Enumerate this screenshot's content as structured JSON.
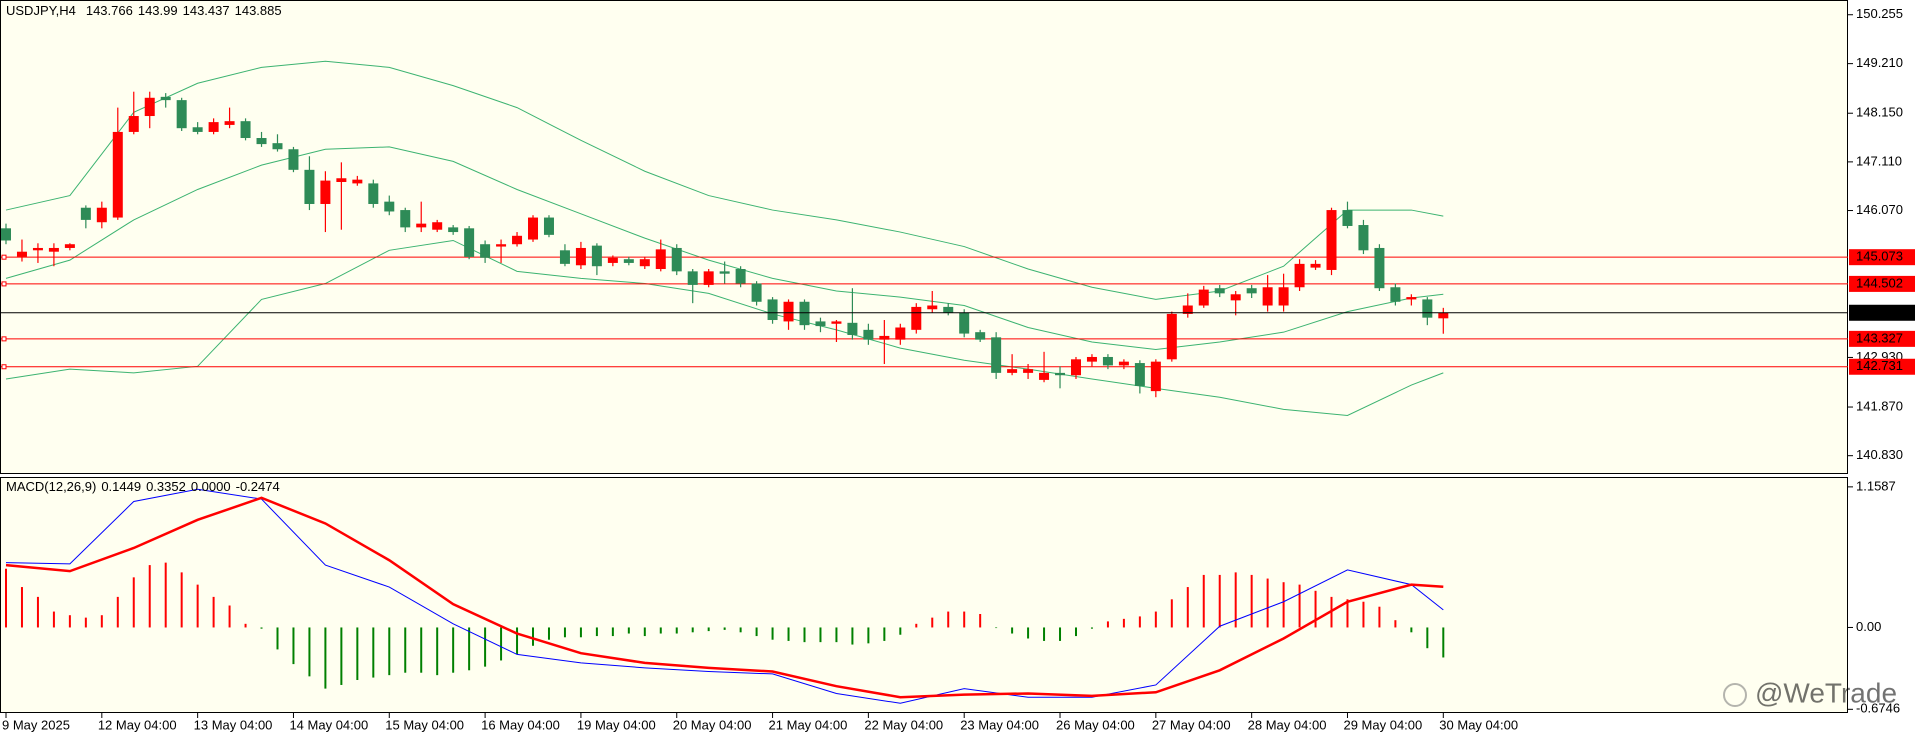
{
  "chart_data": {
    "type": "candlestick",
    "symbol": "USDJPY,H4",
    "categories": [
      "9 May 2025",
      null,
      null,
      null,
      null,
      null,
      "12 May 04:00",
      null,
      null,
      null,
      null,
      null,
      "13 May 04:00",
      null,
      null,
      null,
      null,
      null,
      "14 May 04:00",
      null,
      null,
      null,
      null,
      null,
      "15 May 04:00",
      null,
      null,
      null,
      null,
      null,
      "16 May 04:00",
      null,
      null,
      null,
      null,
      null,
      "19 May 04:00",
      null,
      null,
      null,
      null,
      null,
      "20 May 04:00",
      null,
      null,
      null,
      null,
      null,
      "21 May 04:00",
      null,
      null,
      null,
      null,
      null,
      "22 May 04:00",
      null,
      null,
      null,
      null,
      null,
      "23 May 04:00",
      null,
      null,
      null,
      null,
      null,
      "26 May 04:00",
      null,
      null,
      null,
      null,
      null,
      "27 May 04:00",
      null,
      null,
      null,
      null,
      null,
      "28 May 04:00",
      null,
      null,
      null,
      null,
      null,
      "29 May 04:00",
      null,
      null,
      null,
      null,
      null,
      "30 May 04:00"
    ],
    "candles": [
      {
        "o": 145.69,
        "h": 145.79,
        "l": 145.35,
        "c": 145.43
      },
      {
        "o": 145.08,
        "h": 145.45,
        "l": 144.98,
        "c": 145.19
      },
      {
        "o": 145.22,
        "h": 145.37,
        "l": 144.95,
        "c": 145.27
      },
      {
        "o": 145.19,
        "h": 145.37,
        "l": 144.88,
        "c": 145.27
      },
      {
        "o": 145.27,
        "h": 145.37,
        "l": 145.22,
        "c": 145.35
      },
      {
        "o": 146.13,
        "h": 146.18,
        "l": 145.69,
        "c": 145.87
      },
      {
        "o": 145.82,
        "h": 146.26,
        "l": 145.69,
        "c": 146.13
      },
      {
        "o": 145.92,
        "h": 148.27,
        "l": 145.87,
        "c": 147.75
      },
      {
        "o": 147.75,
        "h": 148.61,
        "l": 147.7,
        "c": 148.09
      },
      {
        "o": 148.09,
        "h": 148.61,
        "l": 147.83,
        "c": 148.48
      },
      {
        "o": 148.5,
        "h": 148.58,
        "l": 148.27,
        "c": 148.43
      },
      {
        "o": 148.43,
        "h": 148.48,
        "l": 147.77,
        "c": 147.83
      },
      {
        "o": 147.85,
        "h": 147.96,
        "l": 147.7,
        "c": 147.75
      },
      {
        "o": 147.75,
        "h": 148.04,
        "l": 147.7,
        "c": 147.96
      },
      {
        "o": 147.9,
        "h": 148.27,
        "l": 147.83,
        "c": 147.98
      },
      {
        "o": 147.98,
        "h": 148.04,
        "l": 147.57,
        "c": 147.62
      },
      {
        "o": 147.62,
        "h": 147.75,
        "l": 147.43,
        "c": 147.49
      },
      {
        "o": 147.51,
        "h": 147.7,
        "l": 147.33,
        "c": 147.38
      },
      {
        "o": 147.38,
        "h": 147.43,
        "l": 146.89,
        "c": 146.94
      },
      {
        "o": 146.94,
        "h": 147.23,
        "l": 146.08,
        "c": 146.21
      },
      {
        "o": 146.21,
        "h": 146.91,
        "l": 145.61,
        "c": 146.71
      },
      {
        "o": 146.68,
        "h": 147.1,
        "l": 145.66,
        "c": 146.76
      },
      {
        "o": 146.65,
        "h": 146.81,
        "l": 146.6,
        "c": 146.73
      },
      {
        "o": 146.65,
        "h": 146.73,
        "l": 146.13,
        "c": 146.21
      },
      {
        "o": 146.26,
        "h": 146.39,
        "l": 145.97,
        "c": 146.05
      },
      {
        "o": 146.08,
        "h": 146.13,
        "l": 145.61,
        "c": 145.71
      },
      {
        "o": 145.71,
        "h": 146.26,
        "l": 145.61,
        "c": 145.79
      },
      {
        "o": 145.66,
        "h": 145.87,
        "l": 145.61,
        "c": 145.82
      },
      {
        "o": 145.71,
        "h": 145.76,
        "l": 145.55,
        "c": 145.61
      },
      {
        "o": 145.69,
        "h": 145.74,
        "l": 145.03,
        "c": 145.08
      },
      {
        "o": 145.35,
        "h": 145.43,
        "l": 144.95,
        "c": 145.06
      },
      {
        "o": 145.3,
        "h": 145.45,
        "l": 144.95,
        "c": 145.35
      },
      {
        "o": 145.35,
        "h": 145.61,
        "l": 145.3,
        "c": 145.53
      },
      {
        "o": 145.45,
        "h": 145.97,
        "l": 145.4,
        "c": 145.92
      },
      {
        "o": 145.92,
        "h": 145.97,
        "l": 145.5,
        "c": 145.55
      },
      {
        "o": 145.22,
        "h": 145.35,
        "l": 144.88,
        "c": 144.93
      },
      {
        "o": 144.9,
        "h": 145.4,
        "l": 144.82,
        "c": 145.27
      },
      {
        "o": 145.32,
        "h": 145.37,
        "l": 144.69,
        "c": 144.88
      },
      {
        "o": 144.95,
        "h": 145.11,
        "l": 144.88,
        "c": 145.06
      },
      {
        "o": 145.03,
        "h": 145.08,
        "l": 144.9,
        "c": 144.95
      },
      {
        "o": 144.88,
        "h": 145.08,
        "l": 144.82,
        "c": 145.03
      },
      {
        "o": 144.82,
        "h": 145.45,
        "l": 144.77,
        "c": 145.24
      },
      {
        "o": 145.27,
        "h": 145.35,
        "l": 144.69,
        "c": 144.77
      },
      {
        "o": 144.77,
        "h": 144.82,
        "l": 144.09,
        "c": 144.48
      },
      {
        "o": 144.48,
        "h": 144.82,
        "l": 144.43,
        "c": 144.77
      },
      {
        "o": 144.77,
        "h": 144.98,
        "l": 144.51,
        "c": 144.72
      },
      {
        "o": 144.82,
        "h": 144.88,
        "l": 144.43,
        "c": 144.51
      },
      {
        "o": 144.51,
        "h": 144.56,
        "l": 144.04,
        "c": 144.12
      },
      {
        "o": 144.17,
        "h": 144.22,
        "l": 143.65,
        "c": 143.73
      },
      {
        "o": 143.7,
        "h": 144.17,
        "l": 143.52,
        "c": 144.12
      },
      {
        "o": 144.12,
        "h": 144.17,
        "l": 143.52,
        "c": 143.62
      },
      {
        "o": 143.7,
        "h": 143.78,
        "l": 143.47,
        "c": 143.6
      },
      {
        "o": 143.65,
        "h": 143.73,
        "l": 143.26,
        "c": 143.7
      },
      {
        "o": 143.67,
        "h": 144.41,
        "l": 143.31,
        "c": 143.41
      },
      {
        "o": 143.52,
        "h": 143.65,
        "l": 143.2,
        "c": 143.31
      },
      {
        "o": 143.31,
        "h": 143.73,
        "l": 142.79,
        "c": 143.39
      },
      {
        "o": 143.31,
        "h": 143.65,
        "l": 143.2,
        "c": 143.57
      },
      {
        "o": 143.52,
        "h": 144.09,
        "l": 143.44,
        "c": 144.01
      },
      {
        "o": 143.96,
        "h": 144.35,
        "l": 143.88,
        "c": 144.04
      },
      {
        "o": 144.01,
        "h": 144.09,
        "l": 143.83,
        "c": 143.88
      },
      {
        "o": 143.88,
        "h": 143.96,
        "l": 143.36,
        "c": 143.44
      },
      {
        "o": 143.47,
        "h": 143.52,
        "l": 143.26,
        "c": 143.31
      },
      {
        "o": 143.36,
        "h": 143.47,
        "l": 142.47,
        "c": 142.6
      },
      {
        "o": 142.6,
        "h": 143.0,
        "l": 142.55,
        "c": 142.68
      },
      {
        "o": 142.6,
        "h": 142.79,
        "l": 142.47,
        "c": 142.68
      },
      {
        "o": 142.45,
        "h": 143.05,
        "l": 142.4,
        "c": 142.6
      },
      {
        "o": 142.6,
        "h": 142.74,
        "l": 142.27,
        "c": 142.55
      },
      {
        "o": 142.55,
        "h": 142.94,
        "l": 142.47,
        "c": 142.89
      },
      {
        "o": 142.84,
        "h": 143.0,
        "l": 142.74,
        "c": 142.94
      },
      {
        "o": 142.94,
        "h": 143.0,
        "l": 142.68,
        "c": 142.76
      },
      {
        "o": 142.76,
        "h": 142.89,
        "l": 142.68,
        "c": 142.84
      },
      {
        "o": 142.81,
        "h": 142.87,
        "l": 142.16,
        "c": 142.32
      },
      {
        "o": 142.21,
        "h": 142.89,
        "l": 142.08,
        "c": 142.84
      },
      {
        "o": 142.89,
        "h": 143.91,
        "l": 142.84,
        "c": 143.86
      },
      {
        "o": 143.86,
        "h": 144.3,
        "l": 143.78,
        "c": 144.04
      },
      {
        "o": 144.04,
        "h": 144.46,
        "l": 143.99,
        "c": 144.38
      },
      {
        "o": 144.41,
        "h": 144.48,
        "l": 144.22,
        "c": 144.3
      },
      {
        "o": 144.15,
        "h": 144.35,
        "l": 143.83,
        "c": 144.28
      },
      {
        "o": 144.41,
        "h": 144.48,
        "l": 144.2,
        "c": 144.3
      },
      {
        "o": 144.04,
        "h": 144.69,
        "l": 143.91,
        "c": 144.43
      },
      {
        "o": 144.04,
        "h": 144.72,
        "l": 143.91,
        "c": 144.43
      },
      {
        "o": 144.43,
        "h": 145.03,
        "l": 144.35,
        "c": 144.93
      },
      {
        "o": 144.85,
        "h": 145.01,
        "l": 144.8,
        "c": 144.93
      },
      {
        "o": 144.8,
        "h": 146.13,
        "l": 144.69,
        "c": 146.08
      },
      {
        "o": 146.08,
        "h": 146.26,
        "l": 145.69,
        "c": 145.74
      },
      {
        "o": 145.76,
        "h": 145.87,
        "l": 145.14,
        "c": 145.22
      },
      {
        "o": 145.27,
        "h": 145.35,
        "l": 144.35,
        "c": 144.41
      },
      {
        "o": 144.43,
        "h": 144.51,
        "l": 144.04,
        "c": 144.12
      },
      {
        "o": 144.17,
        "h": 144.28,
        "l": 144.04,
        "c": 144.22
      },
      {
        "o": 144.17,
        "h": 144.22,
        "l": 143.62,
        "c": 143.78
      },
      {
        "o": 143.766,
        "h": 143.99,
        "l": 143.437,
        "c": 143.885
      }
    ],
    "up_color": "#ff0000",
    "down_color": "#2e8b57",
    "ylim": [
      140.46,
      150.57
    ],
    "yticks": [
      150.255,
      {
        "value": 149.21,
        "label": "149.210"
      },
      {
        "value": 148.15,
        "label": "148.150"
      },
      {
        "value": 147.11,
        "label": "147.110"
      },
      {
        "value": 146.07,
        "label": "146.070"
      },
      {
        "value": 142.93,
        "label": "142.930"
      },
      {
        "value": 141.87,
        "label": "141.870"
      },
      {
        "value": 140.83,
        "label": "140.830"
      }
    ],
    "levels": {
      "color": "#ff0000",
      "values": [
        145.073,
        144.502,
        143.327,
        142.731
      ]
    },
    "bands": {
      "color": "#3cb371",
      "x": [
        0,
        4,
        8,
        12,
        16,
        20,
        24,
        28,
        32,
        36,
        40,
        44,
        48,
        52,
        56,
        60,
        64,
        68,
        72,
        76,
        80,
        84,
        88,
        90
      ],
      "upper": [
        146.08,
        146.39,
        148.17,
        148.79,
        149.13,
        149.26,
        149.13,
        148.74,
        148.27,
        147.57,
        146.91,
        146.39,
        146.08,
        145.87,
        145.61,
        145.3,
        144.82,
        144.43,
        144.17,
        144.35,
        144.88,
        146.08,
        146.08,
        145.95
      ],
      "middle": [
        144.62,
        145.01,
        145.87,
        146.52,
        147.04,
        147.38,
        147.43,
        147.12,
        146.52,
        146.0,
        145.48,
        145.01,
        144.62,
        144.35,
        144.22,
        144.04,
        143.57,
        143.26,
        143.1,
        143.26,
        143.47,
        143.91,
        144.2,
        144.28
      ],
      "lower": [
        142.47,
        142.68,
        142.6,
        142.74,
        144.17,
        144.51,
        145.22,
        145.43,
        144.77,
        144.62,
        144.51,
        144.3,
        143.86,
        143.52,
        143.13,
        142.87,
        142.68,
        142.47,
        142.27,
        142.08,
        141.82,
        141.69,
        142.34,
        142.6
      ]
    },
    "macd": {
      "type": "bar",
      "label": "MACD(12,26,9)",
      "values": [
        0.484,
        0.333,
        0.252,
        0.131,
        0.101,
        0.081,
        0.101,
        0.252,
        0.413,
        0.514,
        0.534,
        0.454,
        0.353,
        0.252,
        0.181,
        0.03,
        -0.01,
        -0.181,
        -0.302,
        -0.403,
        -0.504,
        -0.474,
        -0.433,
        -0.413,
        -0.393,
        -0.373,
        -0.373,
        -0.393,
        -0.373,
        -0.353,
        -0.323,
        -0.272,
        -0.222,
        -0.151,
        -0.101,
        -0.081,
        -0.081,
        -0.071,
        -0.071,
        -0.05,
        -0.071,
        -0.05,
        -0.05,
        -0.04,
        -0.03,
        -0.02,
        -0.04,
        -0.071,
        -0.101,
        -0.111,
        -0.121,
        -0.121,
        -0.121,
        -0.141,
        -0.131,
        -0.111,
        -0.06,
        0.03,
        0.081,
        0.131,
        0.131,
        0.111,
        -0.005,
        -0.05,
        -0.091,
        -0.111,
        -0.111,
        -0.071,
        -0.01,
        0.05,
        0.071,
        0.091,
        0.131,
        0.232,
        0.333,
        0.433,
        0.433,
        0.454,
        0.433,
        0.403,
        0.373,
        0.353,
        0.302,
        0.252,
        0.232,
        0.212,
        0.171,
        0.06,
        -0.04,
        -0.171,
        -0.2474
      ],
      "pos_color": "#ff0000",
      "neg_color": "#008000",
      "ylim": [
        -0.705,
        1.24
      ],
      "yticks": [
        1.1587,
        {
          "value": 0,
          "label": "0.00"
        },
        -0.6746
      ],
      "line_x": [
        0,
        4,
        8,
        12,
        16,
        20,
        24,
        28,
        32,
        36,
        40,
        44,
        48,
        52,
        56,
        60,
        64,
        68,
        72,
        76,
        80,
        84,
        88,
        90
      ],
      "main": {
        "color": "#0000ff",
        "values": [
          0.534,
          0.524,
          1.038,
          1.139,
          1.058,
          0.514,
          0.333,
          0.03,
          -0.222,
          -0.292,
          -0.333,
          -0.363,
          -0.383,
          -0.544,
          -0.625,
          -0.504,
          -0.575,
          -0.575,
          -0.474,
          0.01,
          0.212,
          0.474,
          0.353,
          0.1449
        ]
      },
      "signal": {
        "color": "#ff0000",
        "values": [
          0.514,
          0.464,
          0.655,
          0.887,
          1.068,
          0.857,
          0.554,
          0.192,
          -0.05,
          -0.212,
          -0.292,
          -0.333,
          -0.363,
          -0.484,
          -0.575,
          -0.554,
          -0.544,
          -0.564,
          -0.534,
          -0.353,
          -0.091,
          0.212,
          0.353,
          0.3352
        ]
      },
      "readout_extra": {
        "value": 0,
        "label": "0.0000"
      }
    },
    "watermark": "@WeTrade"
  }
}
